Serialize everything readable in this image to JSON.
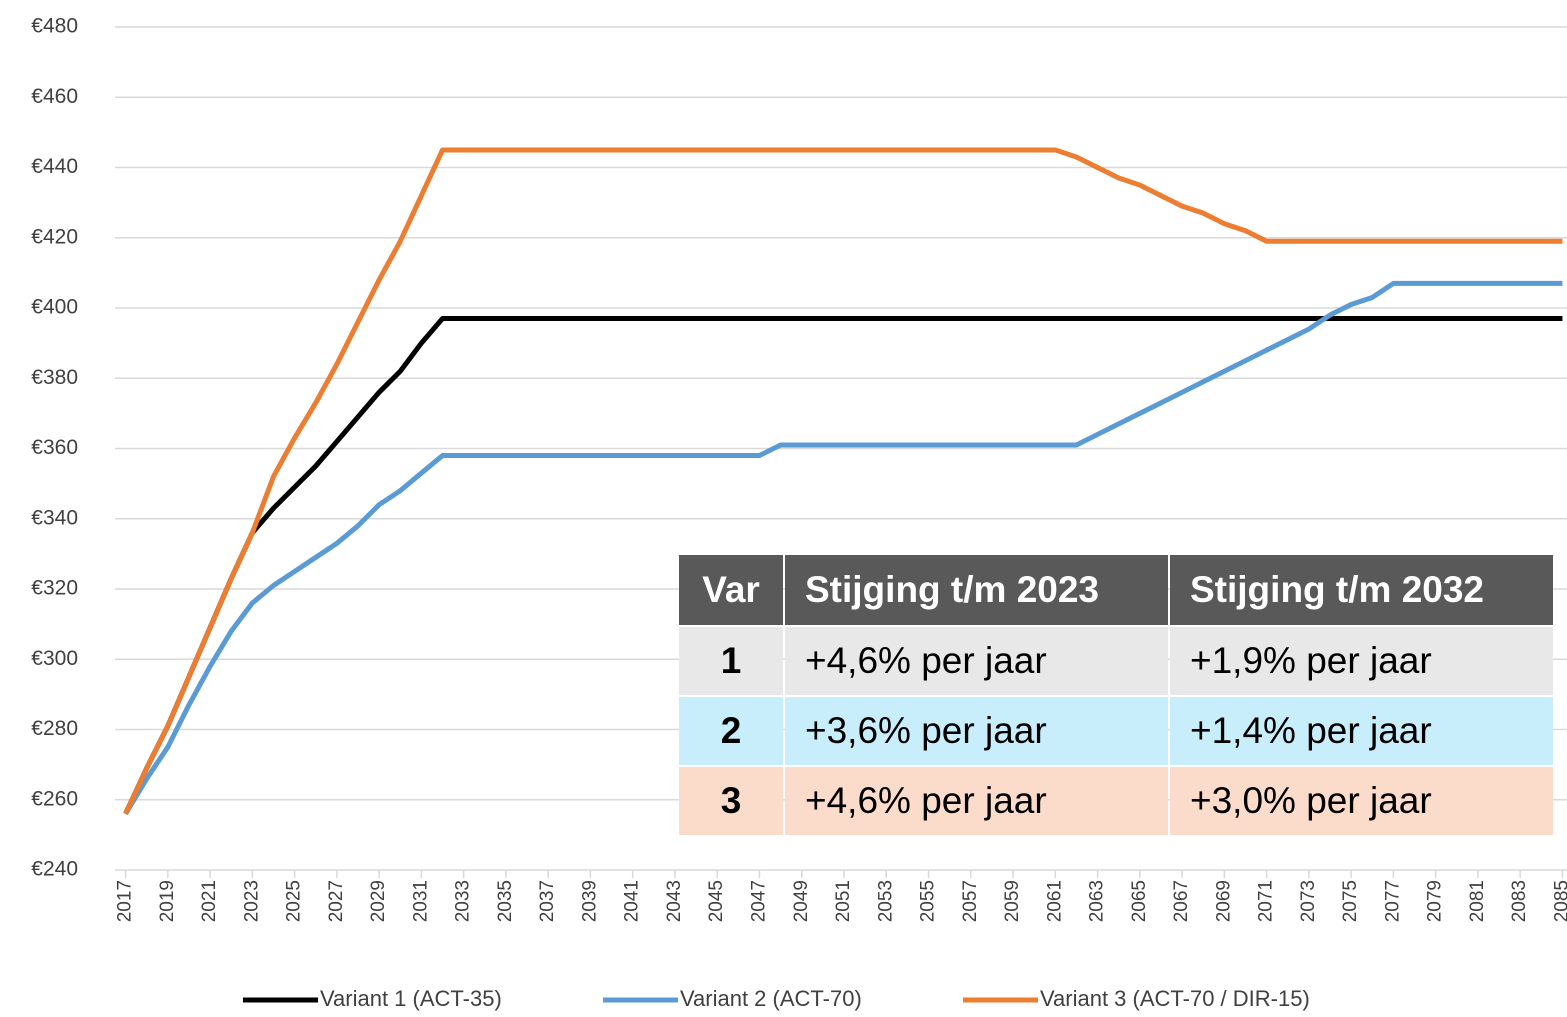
{
  "chart_data": {
    "type": "line",
    "x": [
      2017,
      2018,
      2019,
      2020,
      2021,
      2022,
      2023,
      2024,
      2025,
      2026,
      2027,
      2028,
      2029,
      2030,
      2031,
      2032,
      2033,
      2034,
      2035,
      2036,
      2037,
      2038,
      2039,
      2040,
      2041,
      2042,
      2043,
      2044,
      2045,
      2046,
      2047,
      2048,
      2049,
      2050,
      2051,
      2052,
      2053,
      2054,
      2055,
      2056,
      2057,
      2058,
      2059,
      2060,
      2061,
      2062,
      2063,
      2064,
      2065,
      2066,
      2067,
      2068,
      2069,
      2070,
      2071,
      2072,
      2073,
      2074,
      2075,
      2076,
      2077,
      2078,
      2079,
      2080,
      2081,
      2082,
      2083,
      2084,
      2085
    ],
    "xlim": [
      2016.5,
      2085.5
    ],
    "xticks": [
      2017,
      2019,
      2021,
      2023,
      2025,
      2027,
      2029,
      2031,
      2033,
      2035,
      2037,
      2039,
      2041,
      2043,
      2045,
      2047,
      2049,
      2051,
      2053,
      2055,
      2057,
      2059,
      2061,
      2063,
      2065,
      2067,
      2069,
      2071,
      2073,
      2075,
      2077,
      2079,
      2081,
      2083,
      2085
    ],
    "ylim": [
      240,
      480
    ],
    "yticks": [
      {
        "value": 240,
        "label": "€240"
      },
      {
        "value": 260,
        "label": "€260"
      },
      {
        "value": 280,
        "label": "€280"
      },
      {
        "value": 300,
        "label": "€300"
      },
      {
        "value": 320,
        "label": "€320"
      },
      {
        "value": 340,
        "label": "€340"
      },
      {
        "value": 360,
        "label": "€360"
      },
      {
        "value": 380,
        "label": "€380"
      },
      {
        "value": 400,
        "label": "€400"
      },
      {
        "value": 420,
        "label": "€420"
      },
      {
        "value": 440,
        "label": "€440"
      },
      {
        "value": 460,
        "label": "€460"
      },
      {
        "value": 480,
        "label": "€480"
      }
    ],
    "grid": true,
    "legend": "bottom",
    "series": [
      {
        "name": "Variant 1 (ACT-35)",
        "color": "#000000",
        "values": [
          256,
          269,
          281,
          295,
          309,
          323,
          336,
          343,
          349,
          355,
          362,
          369,
          376,
          382,
          390,
          397,
          397,
          397,
          397,
          397,
          397,
          397,
          397,
          397,
          397,
          397,
          397,
          397,
          397,
          397,
          397,
          397,
          397,
          397,
          397,
          397,
          397,
          397,
          397,
          397,
          397,
          397,
          397,
          397,
          397,
          397,
          397,
          397,
          397,
          397,
          397,
          397,
          397,
          397,
          397,
          397,
          397,
          397,
          397,
          397,
          397,
          397,
          397,
          397,
          397,
          397,
          397,
          397,
          397
        ]
      },
      {
        "name": "Variant 2 (ACT-70)",
        "color": "#5b9bd5",
        "values": [
          256,
          266,
          275,
          287,
          298,
          308,
          316,
          321,
          325,
          329,
          333,
          338,
          344,
          348,
          353,
          358,
          358,
          358,
          358,
          358,
          358,
          358,
          358,
          358,
          358,
          358,
          358,
          358,
          358,
          358,
          358,
          361,
          361,
          361,
          361,
          361,
          361,
          361,
          361,
          361,
          361,
          361,
          361,
          361,
          361,
          361,
          364,
          367,
          370,
          373,
          376,
          379,
          382,
          385,
          388,
          391,
          394,
          398,
          401,
          403,
          407,
          407,
          407,
          407,
          407,
          407,
          407,
          407,
          407
        ]
      },
      {
        "name": "Variant 3 (ACT-70 / DIR-15)",
        "color": "#ed7d31",
        "values": [
          256,
          269,
          281,
          295,
          309,
          323,
          336,
          352,
          363,
          373,
          384,
          396,
          408,
          419,
          432,
          445,
          445,
          445,
          445,
          445,
          445,
          445,
          445,
          445,
          445,
          445,
          445,
          445,
          445,
          445,
          445,
          445,
          445,
          445,
          445,
          445,
          445,
          445,
          445,
          445,
          445,
          445,
          445,
          445,
          445,
          443,
          440,
          437,
          435,
          432,
          429,
          427,
          424,
          422,
          419,
          419,
          419,
          419,
          419,
          419,
          419,
          419,
          419,
          419,
          419,
          419,
          419,
          419,
          419
        ]
      }
    ],
    "table": {
      "header": [
        "Var",
        "Stijging t/m 2023",
        "Stijging t/m 2032"
      ],
      "header_color": "#595959",
      "rows": [
        {
          "cells": [
            "1",
            "+4,6% per jaar",
            "+1,9% per jaar"
          ],
          "color": "#e8e8e8"
        },
        {
          "cells": [
            "2",
            "+3,6% per jaar",
            "+1,4% per jaar"
          ],
          "color": "#c9eefb"
        },
        {
          "cells": [
            "3",
            "+4,6% per jaar",
            "+3,0% per jaar"
          ],
          "color": "#fbdccb"
        }
      ]
    }
  }
}
